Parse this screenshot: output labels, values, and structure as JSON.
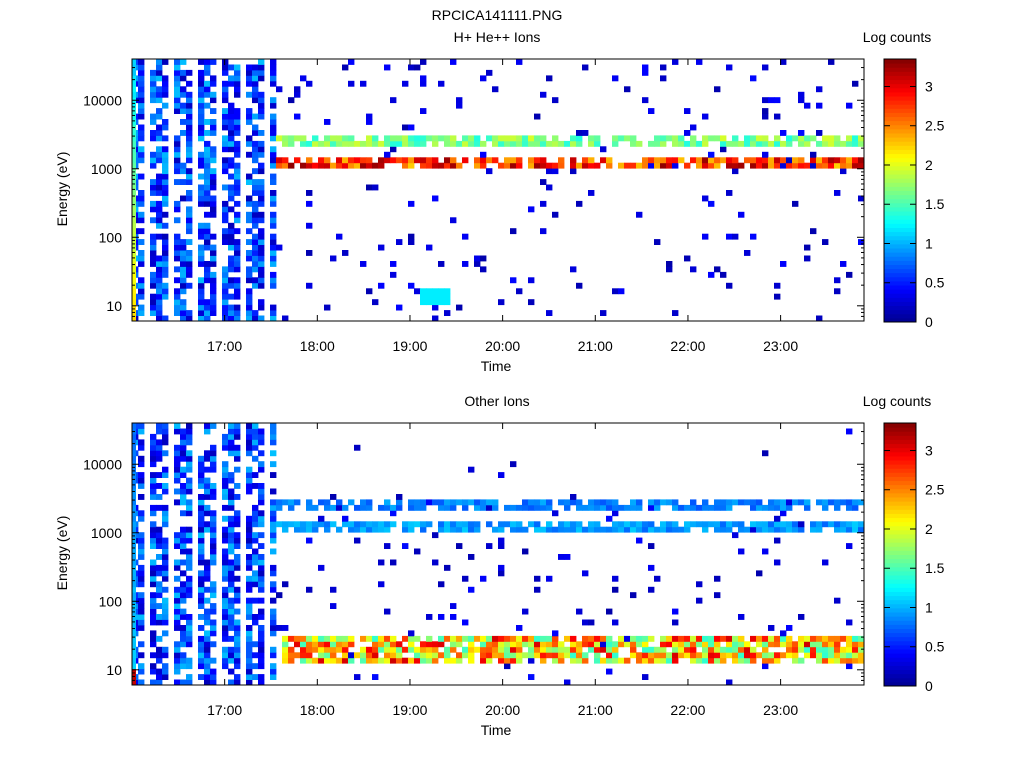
{
  "figure_title": "RPCICA141111.PNG",
  "colors": {
    "colormap": [
      "#00008f",
      "#0000ff",
      "#0080ff",
      "#00ffff",
      "#80ff80",
      "#ffff00",
      "#ff8000",
      "#ff0000",
      "#800000"
    ],
    "background": "#ffffff"
  },
  "chart_data": [
    {
      "type": "heatmap",
      "title": "H+ He++ Ions",
      "xlabel": "Time",
      "ylabel": "Energy (eV)",
      "colorbar_label": "Log counts",
      "x_ticks": [
        "17:00",
        "18:00",
        "19:00",
        "20:00",
        "21:00",
        "22:00",
        "23:00"
      ],
      "x_tick_hours": [
        17,
        18,
        19,
        20,
        21,
        22,
        23
      ],
      "xlim_hours": [
        16.0,
        23.9
      ],
      "y_scale": "log",
      "y_ticks": [
        "10",
        "100",
        "1000",
        "10000"
      ],
      "y_tick_values": [
        10,
        100,
        1000,
        10000
      ],
      "ylim": [
        6,
        40000
      ],
      "colorbar_ticks": [
        "0",
        "0.5",
        "1",
        "1.5",
        "2",
        "2.5",
        "3"
      ],
      "colorbar_values": [
        0,
        0.5,
        1,
        1.5,
        2,
        2.5,
        3
      ],
      "clim": [
        0,
        3.35
      ],
      "features": {
        "early_broadband_until_hour": 17.5,
        "bands": [
          {
            "energy_eV": 1250,
            "level": 3.0
          },
          {
            "energy_eV": 2600,
            "level": 1.8
          }
        ],
        "low_energy_patch": {
          "from_hour": 19.1,
          "to_hour": 19.4,
          "energy_eV": 15,
          "level": 1.2
        }
      }
    },
    {
      "type": "heatmap",
      "title": "Other Ions",
      "xlabel": "Time",
      "ylabel": "Energy (eV)",
      "colorbar_label": "Log counts",
      "x_ticks": [
        "17:00",
        "18:00",
        "19:00",
        "20:00",
        "21:00",
        "22:00",
        "23:00"
      ],
      "x_tick_hours": [
        17,
        18,
        19,
        20,
        21,
        22,
        23
      ],
      "xlim_hours": [
        16.0,
        23.9
      ],
      "y_scale": "log",
      "y_ticks": [
        "10",
        "100",
        "1000",
        "10000"
      ],
      "y_tick_values": [
        10,
        100,
        1000,
        10000
      ],
      "ylim": [
        6,
        40000
      ],
      "colorbar_ticks": [
        "0",
        "0.5",
        "1",
        "1.5",
        "2",
        "2.5",
        "3"
      ],
      "colorbar_values": [
        0,
        0.5,
        1,
        1.5,
        2,
        2.5,
        3
      ],
      "clim": [
        0,
        3.35
      ],
      "features": {
        "early_broadband_until_hour": 17.5,
        "bands": [
          {
            "energy_eV": 1250,
            "level": 1.0
          },
          {
            "energy_eV": 2600,
            "level": 0.9
          }
        ],
        "low_energy_band": {
          "energy_eV": 20,
          "peak_level": 3.1
        }
      }
    }
  ]
}
